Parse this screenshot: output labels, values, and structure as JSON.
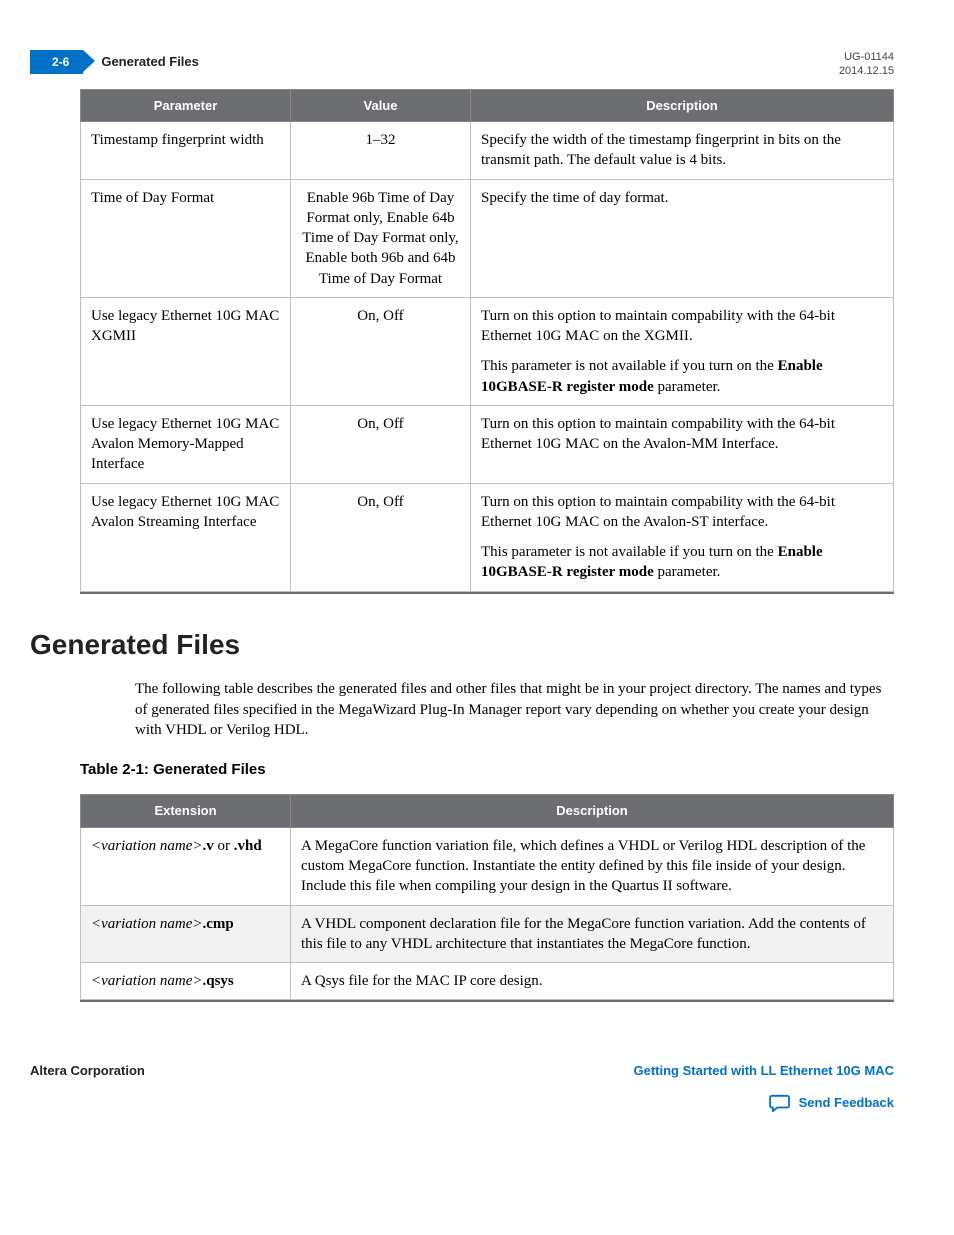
{
  "header": {
    "page_number": "2-6",
    "section_label": "Generated Files",
    "doc_id": "UG-01144",
    "doc_date": "2014.12.15"
  },
  "param_table": {
    "columns": [
      "Parameter",
      "Value",
      "Description"
    ],
    "rows": [
      {
        "parameter": "Timestamp fingerprint width",
        "value": "1–32",
        "description": [
          {
            "text": "Specify the width of the timestamp fingerprint in bits on the transmit path. The default value is 4 bits."
          }
        ]
      },
      {
        "parameter": "Time of Day Format",
        "value": "Enable 96b Time of Day Format only, Enable 64b Time of Day Format only, Enable both 96b and 64b Time of Day Format",
        "description": [
          {
            "text": "Specify the time of day format."
          }
        ]
      },
      {
        "parameter": "Use legacy Ethernet 10G MAC XGMII",
        "value": "On, Off",
        "description": [
          {
            "text": "Turn on this option to maintain compability with the 64-bit Ethernet 10G MAC on the XGMII."
          },
          {
            "pre": "This parameter is not available if you turn on the ",
            "bold": "Enable 10GBASE-R register mode",
            "post": " parameter."
          }
        ]
      },
      {
        "parameter": "Use legacy Ethernet 10G MAC Avalon Memory-Mapped Interface",
        "value": "On, Off",
        "description": [
          {
            "text": "Turn on this option to maintain compability with the 64-bit Ethernet 10G MAC on the Avalon-MM Interface."
          }
        ]
      },
      {
        "parameter": "Use legacy Ethernet 10G MAC Avalon Streaming Interface",
        "value": "On, Off",
        "description": [
          {
            "text": "Turn on this option to maintain compability with the 64-bit Ethernet 10G MAC on the Avalon-ST interface."
          },
          {
            "pre": "This parameter is not available if you turn on the ",
            "bold": "Enable 10GBASE-R register mode",
            "post": " parameter."
          }
        ]
      }
    ]
  },
  "section": {
    "title": "Generated Files",
    "body": "The following table describes the generated files and other files that might be in your project directory. The names and types of generated files specified in the MegaWizard Plug-In Manager report vary depending on whether you create your design with VHDL or Verilog HDL.",
    "table_caption": "Table 2-1: Generated Files"
  },
  "gen_table": {
    "columns": [
      "Extension",
      "Description"
    ],
    "rows": [
      {
        "ext_ital": "<variation name>",
        "ext_bold": ".v",
        "ext_mid": " or ",
        "ext_bold2": ".vhd",
        "description": "A MegaCore function variation file, which defines a VHDL or Verilog HDL description of the custom MegaCore function. Instantiate the entity defined by this file inside of your design. Include this file when compiling your design in the Quartus II software."
      },
      {
        "ext_ital": "<variation name>",
        "ext_bold": ".cmp",
        "ext_mid": "",
        "ext_bold2": "",
        "description": "A VHDL component declaration file for the MegaCore function variation. Add the contents of this file to any VHDL architecture that instantiates the MegaCore function."
      },
      {
        "ext_ital": "<variation name>",
        "ext_bold": ".qsys",
        "ext_mid": "",
        "ext_bold2": "",
        "description": "A Qsys file for the MAC IP core design."
      }
    ]
  },
  "footer": {
    "left": "Altera Corporation",
    "chapter_link": "Getting Started with LL Ethernet 10G MAC",
    "feedback_label": "Send Feedback"
  },
  "colors": {
    "brand_blue": "#0071c5",
    "header_gray": "#6d6e71",
    "border_gray": "#bfbfbf",
    "row_alt": "#f2f2f2"
  }
}
